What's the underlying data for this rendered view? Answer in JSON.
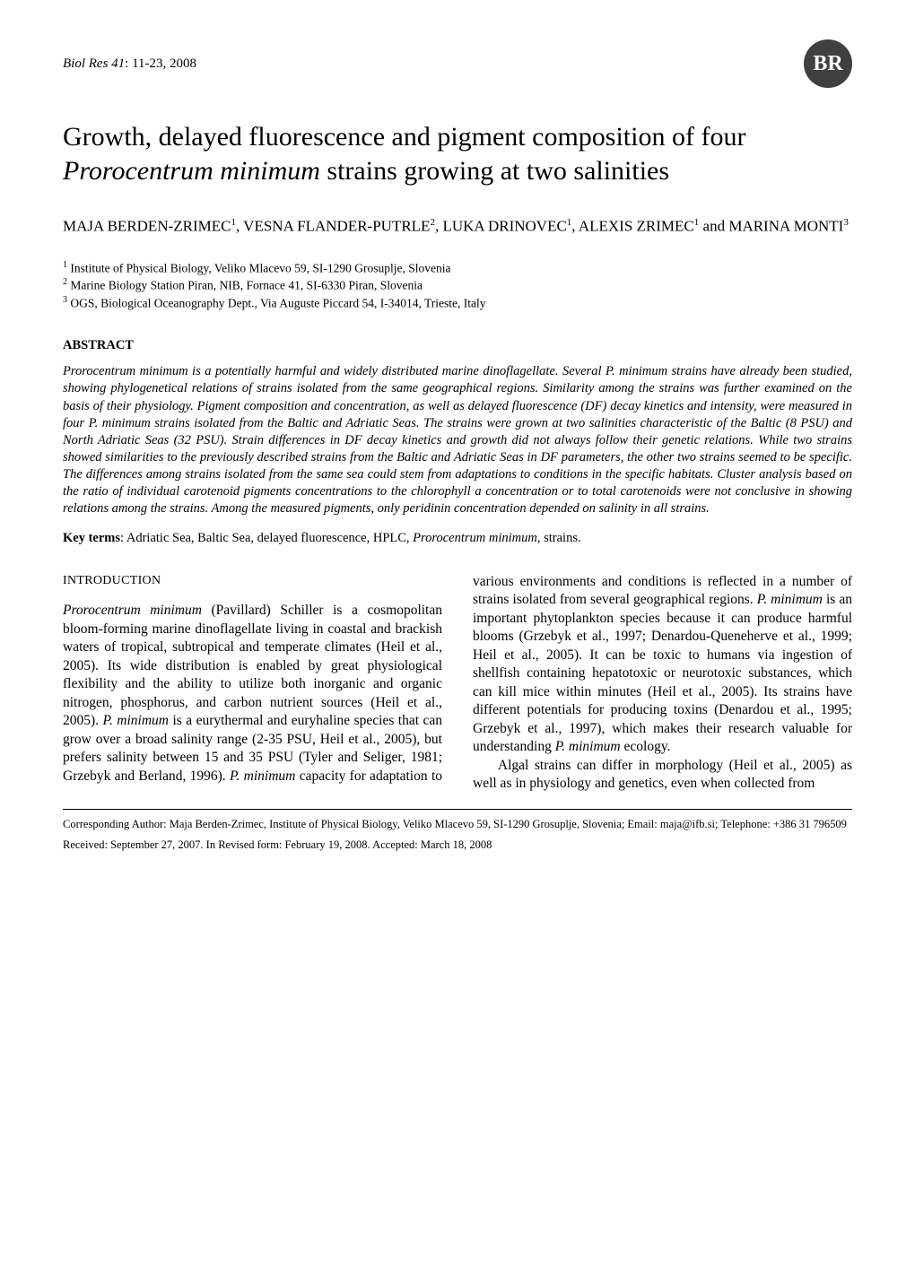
{
  "running_head": {
    "journal": "Biol Res 41",
    "pages": ": 11-23, 2008",
    "logo_text": "BR"
  },
  "title": {
    "pre": "Growth, delayed fluorescence and pigment composition of four ",
    "species": "Prorocentrum minimum",
    "post": " strains growing at two salinities"
  },
  "authors_line1": "MAJA BERDEN-ZRIMEC",
  "authors_sup1": "1",
  "authors_a2": ", VESNA FLANDER-PUTRLE",
  "authors_sup2": "2",
  "authors_a3": ", LUKA DRINOVEC",
  "authors_sup3": "1",
  "authors_a4": ", ALEXIS ZRIMEC",
  "authors_sup4": "1",
  "authors_a5": " and MARINA MONTI",
  "authors_sup5": "3",
  "affiliations": {
    "a1_sup": "1",
    "a1": " Institute of Physical Biology, Veliko Mlacevo 59, SI-1290 Grosuplje, Slovenia",
    "a2_sup": "2",
    "a2": " Marine Biology Station Piran, NIB, Fornace 41, SI-6330 Piran, Slovenia",
    "a3_sup": "3",
    "a3": " OGS, Biological Oceanography Dept., Via Auguste Piccard 54, I-34014, Trieste, Italy"
  },
  "abstract_heading": "ABSTRACT",
  "abstract_body": "Prorocentrum minimum is a potentially harmful and widely distributed marine dinoflagellate. Several P. minimum strains have already been studied, showing phylogenetical relations of strains isolated from the same geographical regions. Similarity among the strains was further examined on the basis of their physiology. Pigment composition and concentration, as well as delayed fluorescence (DF) decay kinetics and intensity, were measured in four P. minimum strains isolated from the Baltic and Adriatic Seas. The strains were grown at two salinities characteristic of the Baltic (8 PSU) and North Adriatic Seas (32 PSU). Strain differences in DF decay kinetics and growth did not always follow their genetic relations. While two strains showed similarities to the previously described strains from the Baltic and Adriatic Seas in DF parameters, the other two strains seemed to be specific. The differences among strains isolated from the same sea could stem from adaptations to conditions in the specific habitats. Cluster analysis based on the ratio of individual carotenoid pigments concentrations to the chlorophyll a concentration or to total carotenoids were not conclusive in showing relations among the strains. Among the measured pigments, only peridinin concentration depended on salinity in all strains.",
  "keywords": {
    "label": "Key terms",
    "body_pre": ": Adriatic Sea, Baltic Sea, delayed fluorescence, HPLC, ",
    "body_ital": "Prorocentrum minimum",
    "body_post": ", strains."
  },
  "intro_heading": "INTRODUCTION",
  "intro_para1": {
    "sp1": "Prorocentrum minimum",
    "t1": " (Pavillard) Schiller is a cosmopolitan bloom-forming marine dinoflagellate living in coastal and brackish waters of tropical, subtropical and temperate climates (Heil et al., 2005). Its wide distribution is enabled by great physiological flexibility and the ability to utilize both inorganic and organic nitrogen, phosphorus, and carbon nutrient sources (Heil et al., 2005). ",
    "sp2": "P. minimum",
    "t2": " is a eurythermal and euryhaline species that can grow over a broad salinity range (2-35 PSU, Heil et al., 2005), but prefers salinity between 15 and 35 PSU (Tyler and Seliger, 1981; Grzebyk and Berland, 1996). ",
    "sp3": "P. minimum",
    "t3": " capacity for adaptation to various environments and conditions is reflected in a number of strains isolated from several geographical regions. ",
    "sp4": "P. minimum",
    "t4": " is an important phytoplankton species because it can produce harmful blooms (Grzebyk et al., 1997; Denardou-Queneherve et al., 1999; Heil et al., 2005). It can be toxic to humans via ingestion of shellfish containing hepatotoxic or neurotoxic substances, which can kill mice within minutes (Heil et al., 2005). Its strains have different potentials for producing toxins (Denardou et al., 1995; Grzebyk et al., 1997), which makes their research valuable for understanding ",
    "sp5": "P. minimum",
    "t5": " ecology."
  },
  "intro_para2": "Algal strains can differ in morphology (Heil et al., 2005) as well as in physiology and genetics, even when collected from",
  "footnotes": {
    "corresponding": "Corresponding Author: Maja Berden-Zrimec, Institute of Physical Biology, Veliko Mlacevo 59, SI-1290 Grosuplje, Slovenia; Email: maja@ifb.si; Telephone: +386 31 796509",
    "received": "Received: September 27, 2007. In Revised form: February 19, 2008. Accepted: March 18, 2008"
  }
}
